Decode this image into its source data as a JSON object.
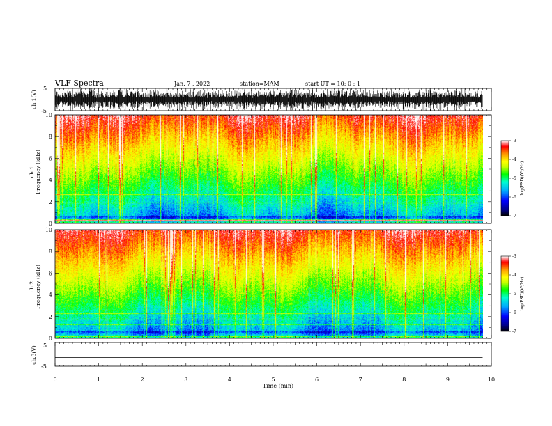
{
  "header": {
    "title": "VLF Spectra",
    "date": "Jan. 7 , 2022",
    "station": "station=MAM",
    "start": "start UT =  10: 0  : 1"
  },
  "chart_data": [
    {
      "type": "line",
      "id": "ch1-waveform",
      "ylabel": "ch.1(V)",
      "ylim": [
        -5,
        5
      ],
      "yticks": [
        "5",
        "-5"
      ],
      "xlim": [
        0,
        10
      ],
      "description_of_signal": "dense impulsive noise"
    },
    {
      "type": "heatmap",
      "id": "ch1-spectrogram",
      "ylabel": "ch.1",
      "ylabel2": "Frequency (kHz)",
      "ylim": [
        0,
        10
      ],
      "yticks": [
        "0",
        "2",
        "4",
        "6",
        "8",
        "10"
      ],
      "xlim": [
        0,
        10
      ],
      "colorbar": {
        "label": "log(PSD)(V²/Hz)",
        "range": [
          -7,
          -3
        ],
        "ticks": [
          "-3",
          "-4",
          "-5",
          "-6",
          "-7"
        ]
      }
    },
    {
      "type": "heatmap",
      "id": "ch2-spectrogram",
      "ylabel": "ch.2",
      "ylabel2": "Frequency (kHz)",
      "ylim": [
        0,
        10
      ],
      "yticks": [
        "0",
        "2",
        "4",
        "6",
        "8",
        "10"
      ],
      "xlim": [
        0,
        10
      ],
      "colorbar": {
        "label": "log(PSD)(V²/Hz)",
        "range": [
          -7,
          -3
        ],
        "ticks": [
          "-3",
          "-4",
          "-5",
          "-6",
          "-7"
        ]
      }
    },
    {
      "type": "line",
      "id": "ch3-waveform",
      "ylabel": "ch.3(V)",
      "ylim": [
        -5,
        5
      ],
      "yticks": [
        "5",
        "-5"
      ],
      "xlim": [
        0,
        10
      ],
      "x": [
        0,
        9.8
      ],
      "y": [
        -1.5,
        -1.5
      ]
    }
  ],
  "xaxis": {
    "label": "Time (min)",
    "ticks": [
      "0",
      "1",
      "2",
      "3",
      "4",
      "5",
      "6",
      "7",
      "8",
      "9",
      "10"
    ]
  },
  "colors": {
    "colormap": [
      "#00008a",
      "#0000ff",
      "#00aaff",
      "#00ffd0",
      "#00ff00",
      "#c8ff00",
      "#ffff00",
      "#ff9a00",
      "#ff0000",
      "#ffffff"
    ]
  }
}
